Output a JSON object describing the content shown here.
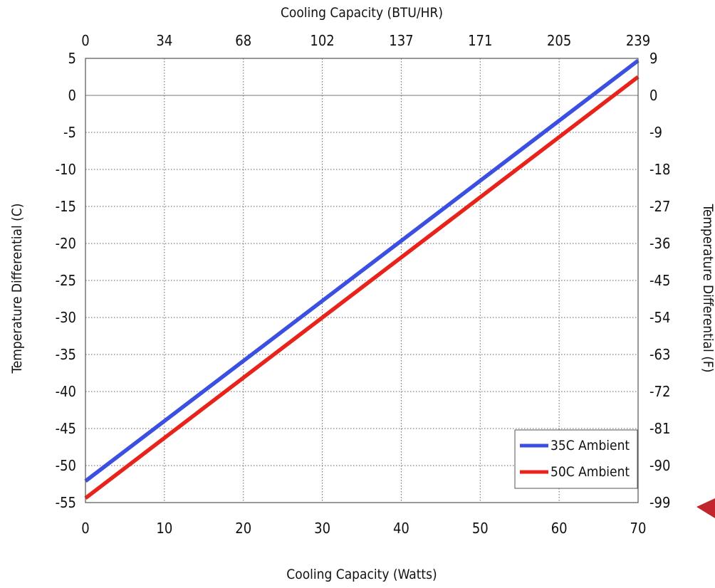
{
  "chart_data": {
    "type": "line",
    "title": "",
    "top_xlabel": "Cooling Capacity (BTU/HR)",
    "xlabel": "Cooling Capacity (Watts)",
    "ylabel": "Temperature Differential (C)",
    "right_ylabel": "Temperature Differential (F)",
    "xlim": [
      0,
      70
    ],
    "ylim": [
      -55,
      5
    ],
    "x_ticks": [
      "0",
      "10",
      "20",
      "30",
      "40",
      "50",
      "60",
      "70"
    ],
    "top_x_ticks": [
      "0",
      "34",
      "68",
      "102",
      "137",
      "171",
      "205",
      "239"
    ],
    "y_ticks": [
      "5",
      "0",
      "-5",
      "-10",
      "-15",
      "-20",
      "-25",
      "-30",
      "-35",
      "-40",
      "-45",
      "-50",
      "-55"
    ],
    "right_y_ticks": [
      "9",
      "0",
      "-9",
      "-18",
      "-27",
      "-36",
      "-45",
      "-54",
      "-63",
      "-72",
      "-81",
      "-90",
      "-99"
    ],
    "grid": true,
    "legend_position": "bottom-right",
    "series": [
      {
        "name": "35C Ambient",
        "color": "#3b4fe0",
        "x": [
          0,
          70
        ],
        "y": [
          -52.1,
          4.7
        ]
      },
      {
        "name": "50C Ambient",
        "color": "#e8231b",
        "x": [
          0,
          70
        ],
        "y": [
          -54.4,
          2.5
        ]
      }
    ]
  }
}
